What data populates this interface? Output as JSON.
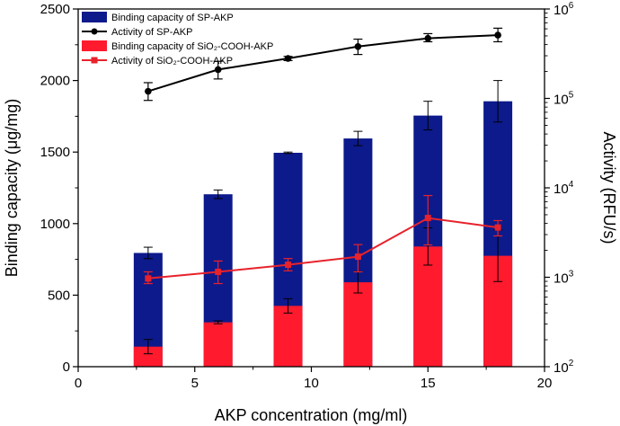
{
  "chart_data": {
    "type": "bar",
    "title": "",
    "xlabel": "AKP concentration (mg/ml)",
    "ylabel": "Binding capacity (μg/mg)",
    "y2label": "Activity (RFU/s)",
    "xlim": [
      0,
      20
    ],
    "ylim": [
      0,
      2500
    ],
    "y2lim": [
      100,
      1000000
    ],
    "y2scale": "log",
    "x_ticks": [
      0,
      5,
      10,
      15,
      20
    ],
    "y_ticks": [
      0,
      500,
      1000,
      1500,
      2000,
      2500
    ],
    "y2_ticks": [
      {
        "base": "10",
        "exp": "2"
      },
      {
        "base": "10",
        "exp": "3"
      },
      {
        "base": "10",
        "exp": "4"
      },
      {
        "base": "10",
        "exp": "5"
      },
      {
        "base": "10",
        "exp": "6"
      }
    ],
    "legend_position": "top-left",
    "x": [
      3,
      6,
      9,
      12,
      15,
      18
    ],
    "series": [
      {
        "name": "Binding capacity of SP-AKP",
        "kind": "bar",
        "axis": "left",
        "color": "#0d1a8c",
        "values": [
          795,
          1205,
          1495,
          1595,
          1755,
          1855
        ],
        "errors": [
          40,
          30,
          5,
          50,
          100,
          145
        ]
      },
      {
        "name": "Activity of SP-AKP",
        "kind": "line",
        "axis": "right",
        "color": "#000000",
        "values": [
          120000,
          210000,
          280000,
          380000,
          470000,
          510000
        ],
        "errors_low": [
          95000,
          165000,
          265000,
          310000,
          430000,
          430000
        ],
        "errors_high": [
          150000,
          260000,
          295000,
          460000,
          530000,
          610000
        ]
      },
      {
        "name": "Binding capacity of SiO₂-COOH-AKP",
        "kind": "bar",
        "axis": "left",
        "color": "#ff1a2e",
        "values": [
          140,
          310,
          425,
          590,
          840,
          775
        ],
        "errors": [
          50,
          10,
          50,
          75,
          130,
          180
        ]
      },
      {
        "name": "Activity of SiO₂-COOH-AKP",
        "kind": "line",
        "axis": "right",
        "color": "#e8222b",
        "values": [
          970,
          1150,
          1380,
          1700,
          4600,
          3600
        ],
        "errors_low": [
          850,
          850,
          1180,
          1150,
          2300,
          2900
        ],
        "errors_high": [
          1150,
          1520,
          1620,
          2320,
          8200,
          4300
        ]
      }
    ]
  }
}
